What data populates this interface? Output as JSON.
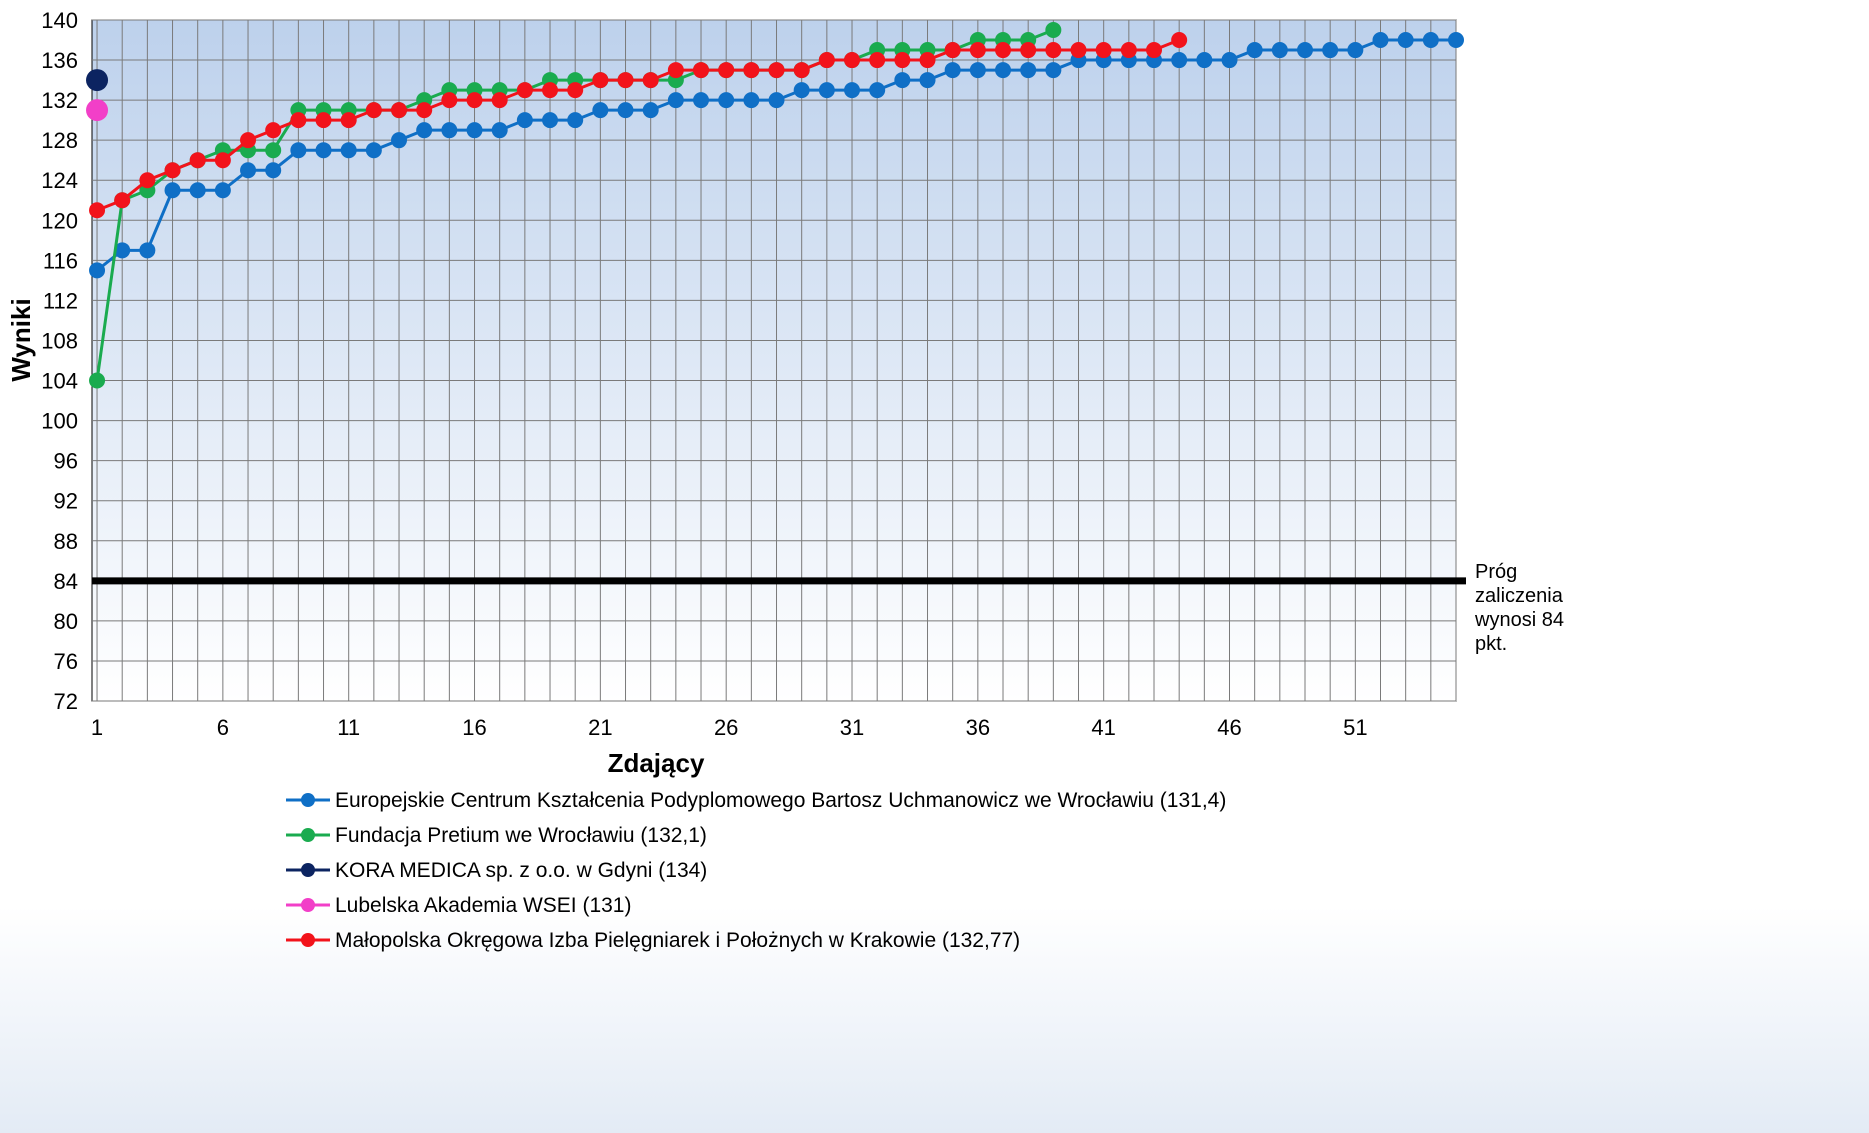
{
  "chart_data": {
    "type": "line",
    "title": "",
    "xlabel": "Zdający",
    "ylabel": "Wyniki",
    "xlim": [
      1,
      55
    ],
    "ylim": [
      72,
      140
    ],
    "x_ticks": [
      1,
      6,
      11,
      16,
      21,
      26,
      31,
      36,
      41,
      46,
      51
    ],
    "y_ticks": [
      72,
      76,
      80,
      84,
      88,
      92,
      96,
      100,
      104,
      108,
      112,
      116,
      120,
      124,
      128,
      132,
      136,
      140
    ],
    "grid": true,
    "legend_position": "bottom",
    "threshold": {
      "value": 84,
      "label_lines": [
        "Próg",
        "zaliczenia",
        "wynosi 84",
        "pkt."
      ]
    },
    "series": [
      {
        "name": "Europejskie Centrum Kształcenia Podyplomowego Bartosz Uchmanowicz we Wrocławiu (131,4)",
        "color": "#0f6fc6",
        "values": [
          115,
          117,
          117,
          123,
          123,
          123,
          125,
          125,
          127,
          127,
          127,
          127,
          128,
          129,
          129,
          129,
          129,
          130,
          130,
          130,
          131,
          131,
          131,
          132,
          132,
          132,
          132,
          132,
          133,
          133,
          133,
          133,
          134,
          134,
          135,
          135,
          135,
          135,
          135,
          136,
          136,
          136,
          136,
          136,
          136,
          136,
          137,
          137,
          137,
          137,
          137,
          138,
          138,
          138,
          138
        ]
      },
      {
        "name": "Fundacja Pretium we Wrocławiu (132,1)",
        "color": "#1aab4f",
        "values": [
          104,
          122,
          123,
          125,
          126,
          127,
          127,
          127,
          131,
          131,
          131,
          131,
          131,
          132,
          133,
          133,
          133,
          133,
          134,
          134,
          134,
          134,
          134,
          134,
          135,
          135,
          135,
          135,
          135,
          136,
          136,
          137,
          137,
          137,
          137,
          138,
          138,
          138,
          139
        ]
      },
      {
        "name": "KORA MEDICA sp. z o.o. w Gdyni (134)",
        "color": "#0c2461",
        "values": [
          134
        ]
      },
      {
        "name": "Lubelska Akademia WSEI (131)",
        "color": "#f23fc8",
        "values": [
          131
        ]
      },
      {
        "name": "Małopolska Okręgowa Izba Pielęgniarek i Położnych w Krakowie (132,77)",
        "color": "#f2131b",
        "values": [
          121,
          122,
          124,
          125,
          126,
          126,
          128,
          129,
          130,
          130,
          130,
          131,
          131,
          131,
          132,
          132,
          132,
          133,
          133,
          133,
          134,
          134,
          134,
          135,
          135,
          135,
          135,
          135,
          135,
          136,
          136,
          136,
          136,
          136,
          137,
          137,
          137,
          137,
          137,
          137,
          137,
          137,
          137,
          138
        ]
      }
    ]
  }
}
